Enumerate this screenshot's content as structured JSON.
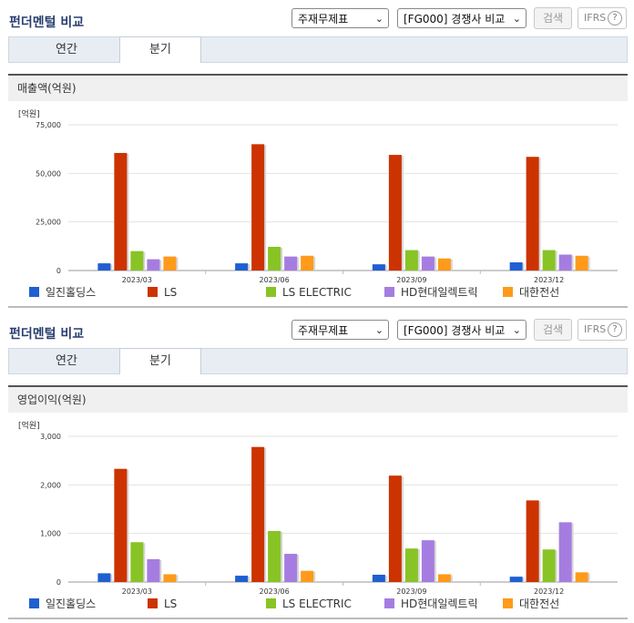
{
  "sections": [
    {
      "title": "펀더멘털 비교",
      "select_statement": "주재무제표",
      "select_compare": "[FG000] 경쟁사 비교",
      "search_label": "검색",
      "ifrs_label": "IFRS",
      "ifrs_help": "?",
      "tabs": [
        "연간",
        "분기"
      ],
      "active_tab": 1,
      "panel_title": "매출액(억원)",
      "unit": "[억원]"
    },
    {
      "title": "펀더멘털 비교",
      "select_statement": "주재무제표",
      "select_compare": "[FG000] 경쟁사 비교",
      "search_label": "검색",
      "ifrs_label": "IFRS",
      "ifrs_help": "?",
      "tabs": [
        "연간",
        "분기"
      ],
      "active_tab": 1,
      "panel_title": "영업이익(억원)",
      "unit": "[억원]"
    }
  ],
  "colors": {
    "series": [
      "#1f5fd1",
      "#cc3300",
      "#88c425",
      "#a57de0",
      "#ff9a1a"
    ]
  },
  "chart_data": [
    {
      "type": "bar",
      "title": "매출액(억원)",
      "ylabel": "[억원]",
      "categories": [
        "2023/03",
        "2023/06",
        "2023/09",
        "2023/12"
      ],
      "ylim": [
        0,
        75000
      ],
      "yticks": [
        "0",
        "25,000",
        "50,000",
        "75,000"
      ],
      "ytick_values": [
        0,
        25000,
        50000,
        75000
      ],
      "series": [
        {
          "name": "일진홀딩스",
          "values": [
            3700,
            3700,
            3200,
            4200
          ]
        },
        {
          "name": "LS",
          "values": [
            60500,
            65000,
            59500,
            58500
          ]
        },
        {
          "name": "LS ELECTRIC",
          "values": [
            10000,
            12200,
            10500,
            10500
          ]
        },
        {
          "name": "HD현대일렉트릭",
          "values": [
            5800,
            7200,
            7200,
            8200
          ]
        },
        {
          "name": "대한전선",
          "values": [
            7200,
            7600,
            6200,
            7600
          ]
        }
      ]
    },
    {
      "type": "bar",
      "title": "영업이익(억원)",
      "ylabel": "[억원]",
      "categories": [
        "2023/03",
        "2023/06",
        "2023/09",
        "2023/12"
      ],
      "ylim": [
        0,
        3000
      ],
      "yticks": [
        "0",
        "1,000",
        "2,000",
        "3,000"
      ],
      "ytick_values": [
        0,
        1000,
        2000,
        3000
      ],
      "series": [
        {
          "name": "일진홀딩스",
          "values": [
            180,
            130,
            150,
            110
          ]
        },
        {
          "name": "LS",
          "values": [
            2330,
            2780,
            2190,
            1680
          ]
        },
        {
          "name": "LS ELECTRIC",
          "values": [
            820,
            1050,
            690,
            670
          ]
        },
        {
          "name": "HD현대일렉트릭",
          "values": [
            470,
            580,
            860,
            1230
          ]
        },
        {
          "name": "대한전선",
          "values": [
            160,
            230,
            160,
            200
          ]
        }
      ]
    }
  ]
}
